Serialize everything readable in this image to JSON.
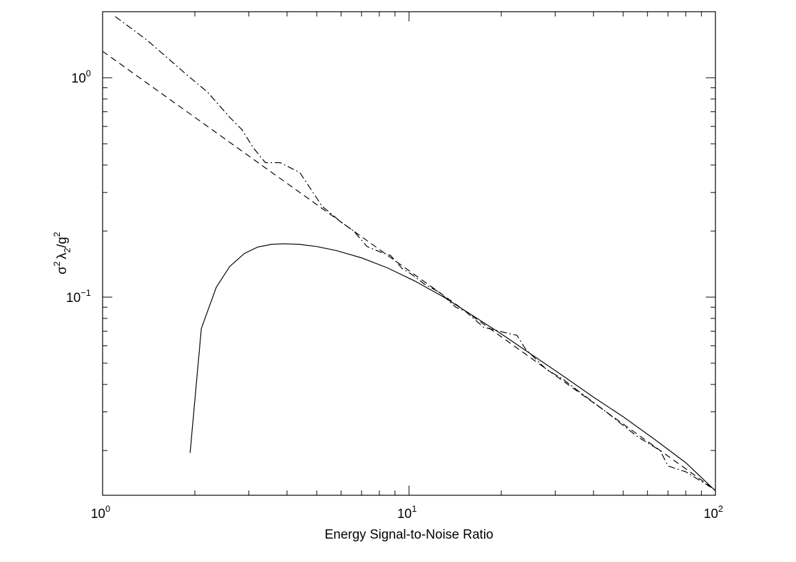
{
  "chart_data": {
    "type": "line",
    "title": "",
    "xlabel": "Energy Signal-to-Noise Ratio",
    "ylabel": {
      "base": "σ",
      "sup1": "2",
      "lambda": "λ",
      "sub": "2",
      "slash": "/g",
      "sup2": "2"
    },
    "xscale": "log",
    "yscale": "log",
    "xlim": [
      1,
      100
    ],
    "ylim": [
      0.0125,
      2.0
    ],
    "x_ticks": [
      {
        "value": 1,
        "base": "10",
        "exp": "0"
      },
      {
        "value": 10,
        "base": "10",
        "exp": "1"
      },
      {
        "value": 100,
        "base": "10",
        "exp": "2"
      }
    ],
    "y_ticks": [
      {
        "value": 0.1,
        "base": "10",
        "exp": "−1"
      },
      {
        "value": 1,
        "base": "10",
        "exp": "0"
      }
    ],
    "grid": false,
    "series": [
      {
        "name": "solid",
        "style": "solid",
        "x": [
          1.93,
          2.1,
          2.35,
          2.6,
          2.9,
          3.2,
          3.55,
          3.9,
          4.4,
          5.0,
          5.8,
          7.0,
          8.5,
          10.5,
          13,
          16,
          20,
          25,
          32,
          40,
          50,
          63,
          80,
          100
        ],
        "y": [
          0.0195,
          0.072,
          0.111,
          0.138,
          0.158,
          0.169,
          0.174,
          0.175,
          0.174,
          0.17,
          0.163,
          0.151,
          0.136,
          0.118,
          0.1,
          0.083,
          0.068,
          0.055,
          0.0435,
          0.035,
          0.0285,
          0.0226,
          0.0176,
          0.0131
        ]
      },
      {
        "name": "dashed",
        "style": "dashed",
        "x": [
          1.0,
          100.0
        ],
        "y": [
          1.32,
          0.0132
        ]
      },
      {
        "name": "dash-dot",
        "style": "dashdot",
        "x": [
          1.1,
          1.4,
          1.9,
          2.2,
          2.6,
          2.85,
          3.1,
          3.4,
          3.8,
          4.4,
          5.2,
          6.0,
          6.6,
          7.3,
          8.1,
          8.7,
          9.5,
          10.2,
          11.2,
          12.6,
          14.2,
          15.3,
          17.5,
          20.5,
          22.5,
          24.0,
          28.0,
          32.0,
          36.0,
          44.0,
          50.0,
          56.0,
          66.0,
          70.0,
          80.0,
          100.0
        ],
        "y": [
          1.9,
          1.48,
          1.02,
          0.86,
          0.66,
          0.58,
          0.48,
          0.41,
          0.41,
          0.37,
          0.26,
          0.22,
          0.2,
          0.17,
          0.16,
          0.155,
          0.135,
          0.127,
          0.115,
          0.105,
          0.09,
          0.086,
          0.073,
          0.069,
          0.067,
          0.058,
          0.047,
          0.042,
          0.037,
          0.03,
          0.026,
          0.023,
          0.02,
          0.017,
          0.016,
          0.0132
        ]
      }
    ]
  }
}
